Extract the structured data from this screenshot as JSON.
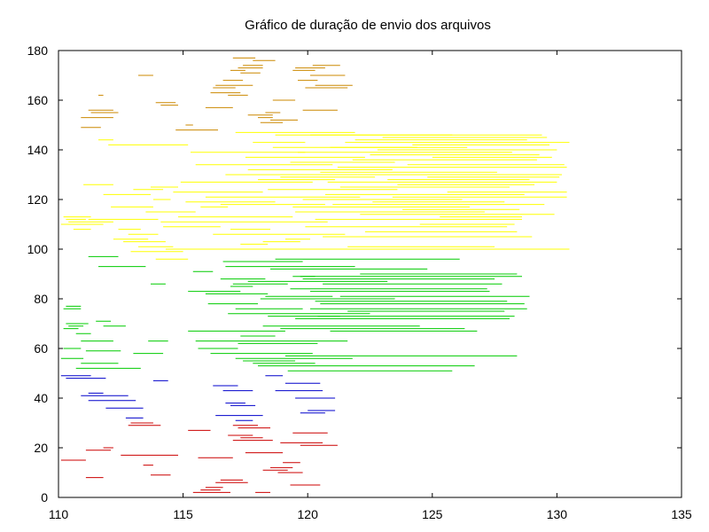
{
  "chart_data": {
    "type": "interval",
    "title": "Gráfico de duração de envio dos arquivos",
    "xlabel": "",
    "ylabel": "",
    "xlim": [
      110,
      135
    ],
    "ylim": [
      0,
      180
    ],
    "x_ticks": [
      110,
      115,
      120,
      125,
      130,
      135
    ],
    "y_ticks": [
      0,
      20,
      40,
      60,
      80,
      100,
      120,
      140,
      160,
      180
    ],
    "legend": "none",
    "grid": false,
    "series": [
      {
        "color": "#cc0000",
        "segments": [
          [
            110.1,
            111.1,
            15
          ],
          [
            111.1,
            111.8,
            8
          ],
          [
            111.1,
            112.1,
            19
          ],
          [
            111.8,
            112.2,
            20
          ],
          [
            112.8,
            114.1,
            29
          ],
          [
            112.9,
            113.8,
            30
          ],
          [
            112.5,
            114.8,
            17
          ],
          [
            113.4,
            113.8,
            13
          ],
          [
            113.7,
            114.5,
            9
          ],
          [
            115.2,
            116.1,
            27
          ],
          [
            115.4,
            116.9,
            2
          ],
          [
            115.6,
            117.0,
            16
          ],
          [
            115.7,
            116.5,
            3
          ],
          [
            115.9,
            116.6,
            4
          ],
          [
            116.5,
            117.4,
            7
          ],
          [
            116.3,
            117.6,
            6
          ],
          [
            117.0,
            118.0,
            29
          ],
          [
            117.2,
            118.5,
            28
          ],
          [
            116.8,
            117.8,
            25
          ],
          [
            117.3,
            118.2,
            24
          ],
          [
            117.0,
            118.6,
            23
          ],
          [
            117.9,
            118.5,
            2
          ],
          [
            117.5,
            119.0,
            18
          ],
          [
            118.5,
            119.4,
            12
          ],
          [
            118.2,
            119.2,
            11
          ],
          [
            119.0,
            119.7,
            14
          ],
          [
            118.8,
            119.8,
            10
          ],
          [
            118.9,
            120.6,
            22
          ],
          [
            119.4,
            120.8,
            26
          ],
          [
            119.3,
            120.5,
            5
          ],
          [
            119.7,
            121.2,
            21
          ]
        ]
      },
      {
        "color": "#0000cc",
        "segments": [
          [
            110.1,
            111.3,
            49
          ],
          [
            110.3,
            111.9,
            48
          ],
          [
            110.9,
            112.8,
            41
          ],
          [
            111.2,
            111.8,
            42
          ],
          [
            111.2,
            113.1,
            39
          ],
          [
            111.9,
            113.4,
            36
          ],
          [
            112.7,
            113.4,
            32
          ],
          [
            113.8,
            114.4,
            47
          ],
          [
            116.2,
            117.2,
            45
          ],
          [
            116.6,
            117.8,
            43
          ],
          [
            116.7,
            117.5,
            38
          ],
          [
            116.9,
            117.9,
            37
          ],
          [
            116.3,
            118.2,
            33
          ],
          [
            117.1,
            117.8,
            31
          ],
          [
            118.3,
            119.0,
            49
          ],
          [
            118.7,
            120.6,
            43
          ],
          [
            119.1,
            120.5,
            46
          ],
          [
            119.5,
            121.1,
            40
          ],
          [
            119.7,
            120.7,
            34
          ],
          [
            120.0,
            121.1,
            35
          ]
        ]
      },
      {
        "color": "#00cc00",
        "segments": [
          [
            110.1,
            111.0,
            56
          ],
          [
            110.2,
            110.9,
            60
          ],
          [
            110.2,
            110.9,
            76
          ],
          [
            110.3,
            110.9,
            77
          ],
          [
            110.2,
            110.8,
            68
          ],
          [
            110.3,
            111.2,
            70
          ],
          [
            110.4,
            111.0,
            69
          ],
          [
            110.7,
            111.3,
            66
          ],
          [
            110.9,
            112.4,
            54
          ],
          [
            110.7,
            113.3,
            52
          ],
          [
            110.9,
            112.2,
            63
          ],
          [
            111.2,
            112.4,
            97
          ],
          [
            111.1,
            112.5,
            59
          ],
          [
            111.5,
            112.1,
            71
          ],
          [
            111.6,
            113.5,
            93
          ],
          [
            111.8,
            112.7,
            69
          ],
          [
            113.0,
            114.2,
            58
          ],
          [
            113.7,
            114.3,
            86
          ],
          [
            113.6,
            114.4,
            63
          ],
          [
            115.2,
            119.1,
            67
          ],
          [
            115.4,
            116.2,
            91
          ],
          [
            115.2,
            117.3,
            83
          ],
          [
            115.5,
            121.6,
            63
          ],
          [
            115.9,
            118.4,
            82
          ],
          [
            116.0,
            118.0,
            78
          ],
          [
            115.6,
            117.2,
            60
          ],
          [
            116.1,
            120.2,
            58
          ],
          [
            116.5,
            118.3,
            88
          ],
          [
            116.6,
            119.8,
            95
          ],
          [
            116.7,
            121.9,
            93
          ],
          [
            116.8,
            122.5,
            74
          ],
          [
            116.9,
            117.8,
            85
          ],
          [
            117.0,
            119.2,
            86
          ],
          [
            117.1,
            121.8,
            56
          ],
          [
            117.1,
            119.8,
            76
          ],
          [
            117.2,
            120.4,
            62
          ],
          [
            117.3,
            118.7,
            65
          ],
          [
            117.4,
            119.5,
            55
          ],
          [
            117.6,
            123.2,
            87
          ],
          [
            117.8,
            120.3,
            54
          ],
          [
            118.0,
            126.7,
            53
          ],
          [
            118.3,
            121.0,
            81
          ],
          [
            118.2,
            124.5,
            69
          ],
          [
            118.1,
            123.5,
            80
          ],
          [
            118.5,
            124.8,
            92
          ],
          [
            118.4,
            121.3,
            73
          ],
          [
            118.7,
            126.1,
            96
          ],
          [
            118.9,
            126.3,
            68
          ],
          [
            119.1,
            128.4,
            57
          ],
          [
            119.2,
            125.8,
            51
          ],
          [
            119.3,
            127.2,
            84
          ],
          [
            119.4,
            120.3,
            89
          ],
          [
            119.5,
            128.1,
            72
          ],
          [
            119.7,
            128.6,
            89
          ],
          [
            119.8,
            127.5,
            88
          ],
          [
            120.1,
            128.8,
            76
          ],
          [
            120.3,
            128.0,
            79
          ],
          [
            120.1,
            127.3,
            83
          ],
          [
            120.4,
            128.3,
            73
          ],
          [
            120.5,
            128.7,
            78
          ],
          [
            120.6,
            127.8,
            86
          ],
          [
            120.9,
            126.8,
            67
          ],
          [
            121.3,
            128.9,
            81
          ],
          [
            121.6,
            127.9,
            75
          ],
          [
            122.1,
            128.4,
            90
          ]
        ]
      },
      {
        "color": "#ffff00",
        "segments": [
          [
            110.1,
            111.8,
            110
          ],
          [
            110.2,
            111.3,
            113
          ],
          [
            110.3,
            111.1,
            112
          ],
          [
            110.4,
            112.2,
            111
          ],
          [
            110.6,
            111.3,
            108
          ],
          [
            111.0,
            112.2,
            126
          ],
          [
            111.2,
            114.0,
            112
          ],
          [
            111.6,
            112.2,
            144
          ],
          [
            111.8,
            113.7,
            122
          ],
          [
            112.0,
            115.2,
            142
          ],
          [
            112.1,
            113.8,
            117
          ],
          [
            112.2,
            113.6,
            104
          ],
          [
            112.4,
            113.3,
            108
          ],
          [
            112.6,
            114.3,
            103
          ],
          [
            112.8,
            114.0,
            106
          ],
          [
            112.9,
            115.0,
            99
          ],
          [
            113.0,
            114.2,
            124
          ],
          [
            113.2,
            114.6,
            101
          ],
          [
            113.5,
            115.5,
            115
          ],
          [
            113.7,
            114.8,
            125
          ],
          [
            113.8,
            114.5,
            120
          ],
          [
            113.9,
            115.2,
            96
          ],
          [
            114.2,
            116.5,
            109
          ],
          [
            114.1,
            120.8,
            111
          ],
          [
            114.3,
            121.3,
            100
          ],
          [
            114.6,
            118.2,
            123
          ],
          [
            114.8,
            119.4,
            113
          ],
          [
            114.9,
            120.2,
            127
          ],
          [
            115.1,
            118.7,
            119
          ],
          [
            115.3,
            119.9,
            139
          ],
          [
            115.5,
            121.0,
            134
          ],
          [
            115.7,
            116.8,
            117
          ],
          [
            115.9,
            122.1,
            121
          ],
          [
            116.2,
            121.5,
            106
          ],
          [
            116.5,
            120.7,
            118
          ],
          [
            116.7,
            122.0,
            130
          ],
          [
            116.9,
            118.5,
            108
          ],
          [
            117.1,
            121.9,
            147
          ],
          [
            117.3,
            118.4,
            102
          ],
          [
            117.5,
            122.3,
            137
          ],
          [
            117.6,
            123.4,
            132
          ],
          [
            117.8,
            119.9,
            143
          ],
          [
            118.0,
            121.1,
            128
          ],
          [
            118.2,
            119.7,
            103
          ],
          [
            118.4,
            123.6,
            124
          ],
          [
            118.6,
            124.4,
            141
          ],
          [
            118.7,
            125.8,
            146
          ],
          [
            118.9,
            122.7,
            129
          ],
          [
            119.1,
            120.1,
            104
          ],
          [
            119.3,
            123.5,
            135
          ],
          [
            119.4,
            126.5,
            117
          ],
          [
            119.5,
            127.1,
            115
          ],
          [
            119.6,
            128.2,
            139
          ],
          [
            119.8,
            126.2,
            120
          ],
          [
            119.9,
            128.0,
            109
          ],
          [
            120.1,
            129.4,
            146
          ],
          [
            120.2,
            130.5,
            100
          ],
          [
            120.3,
            128.6,
            112
          ],
          [
            120.5,
            127.6,
            131
          ],
          [
            120.6,
            129.0,
            105
          ],
          [
            120.7,
            128.7,
            122
          ],
          [
            120.8,
            130.0,
            127
          ],
          [
            120.9,
            126.4,
            141
          ],
          [
            121.0,
            129.5,
            118
          ],
          [
            121.2,
            130.4,
            133
          ],
          [
            121.3,
            128.1,
            125
          ],
          [
            121.5,
            130.5,
            143
          ],
          [
            121.6,
            127.5,
            101
          ],
          [
            121.8,
            129.2,
            136
          ],
          [
            121.9,
            128.8,
            144
          ],
          [
            122.0,
            130.2,
            130
          ],
          [
            122.1,
            129.9,
            114
          ],
          [
            122.3,
            128.4,
            107
          ],
          [
            122.5,
            129.3,
            138
          ],
          [
            122.6,
            127.9,
            119
          ],
          [
            122.8,
            130.0,
            140
          ],
          [
            123.0,
            129.6,
            145
          ],
          [
            123.2,
            128.9,
            128
          ],
          [
            123.4,
            130.4,
            121
          ],
          [
            123.6,
            129.1,
            126
          ],
          [
            123.8,
            128.5,
            116
          ],
          [
            124.0,
            130.3,
            134
          ],
          [
            124.2,
            129.7,
            142
          ],
          [
            124.5,
            128.3,
            110
          ],
          [
            124.8,
            130.1,
            129
          ],
          [
            125.0,
            129.8,
            137
          ],
          [
            125.3,
            128.6,
            113
          ],
          [
            125.6,
            130.4,
            123
          ]
        ]
      },
      {
        "color": "#cc8800",
        "segments": [
          [
            110.9,
            111.7,
            149
          ],
          [
            110.9,
            112.2,
            153
          ],
          [
            111.2,
            112.2,
            156
          ],
          [
            111.3,
            112.4,
            155
          ],
          [
            111.6,
            111.8,
            162
          ],
          [
            113.2,
            113.8,
            170
          ],
          [
            113.9,
            114.7,
            159
          ],
          [
            114.1,
            114.8,
            158
          ],
          [
            114.7,
            116.4,
            148
          ],
          [
            115.1,
            115.4,
            150
          ],
          [
            115.9,
            117.0,
            157
          ],
          [
            116.1,
            117.3,
            163
          ],
          [
            116.2,
            117.1,
            165
          ],
          [
            116.3,
            117.8,
            166
          ],
          [
            116.6,
            117.4,
            168
          ],
          [
            116.8,
            117.6,
            162
          ],
          [
            116.9,
            117.5,
            172
          ],
          [
            117.0,
            117.9,
            177
          ],
          [
            117.2,
            118.2,
            173
          ],
          [
            117.3,
            118.1,
            171
          ],
          [
            117.4,
            118.2,
            174
          ],
          [
            117.6,
            118.6,
            154
          ],
          [
            117.8,
            118.7,
            176
          ],
          [
            118.0,
            118.6,
            153
          ],
          [
            118.1,
            119.0,
            151
          ],
          [
            118.3,
            118.9,
            155
          ],
          [
            118.5,
            119.6,
            152
          ],
          [
            118.6,
            119.5,
            160
          ],
          [
            119.4,
            120.3,
            172
          ],
          [
            119.5,
            120.7,
            173
          ],
          [
            119.6,
            120.4,
            168
          ],
          [
            119.8,
            121.2,
            156
          ],
          [
            119.9,
            121.6,
            165
          ],
          [
            120.1,
            121.5,
            170
          ],
          [
            120.2,
            121.3,
            174
          ],
          [
            120.3,
            121.8,
            166
          ]
        ]
      }
    ]
  }
}
